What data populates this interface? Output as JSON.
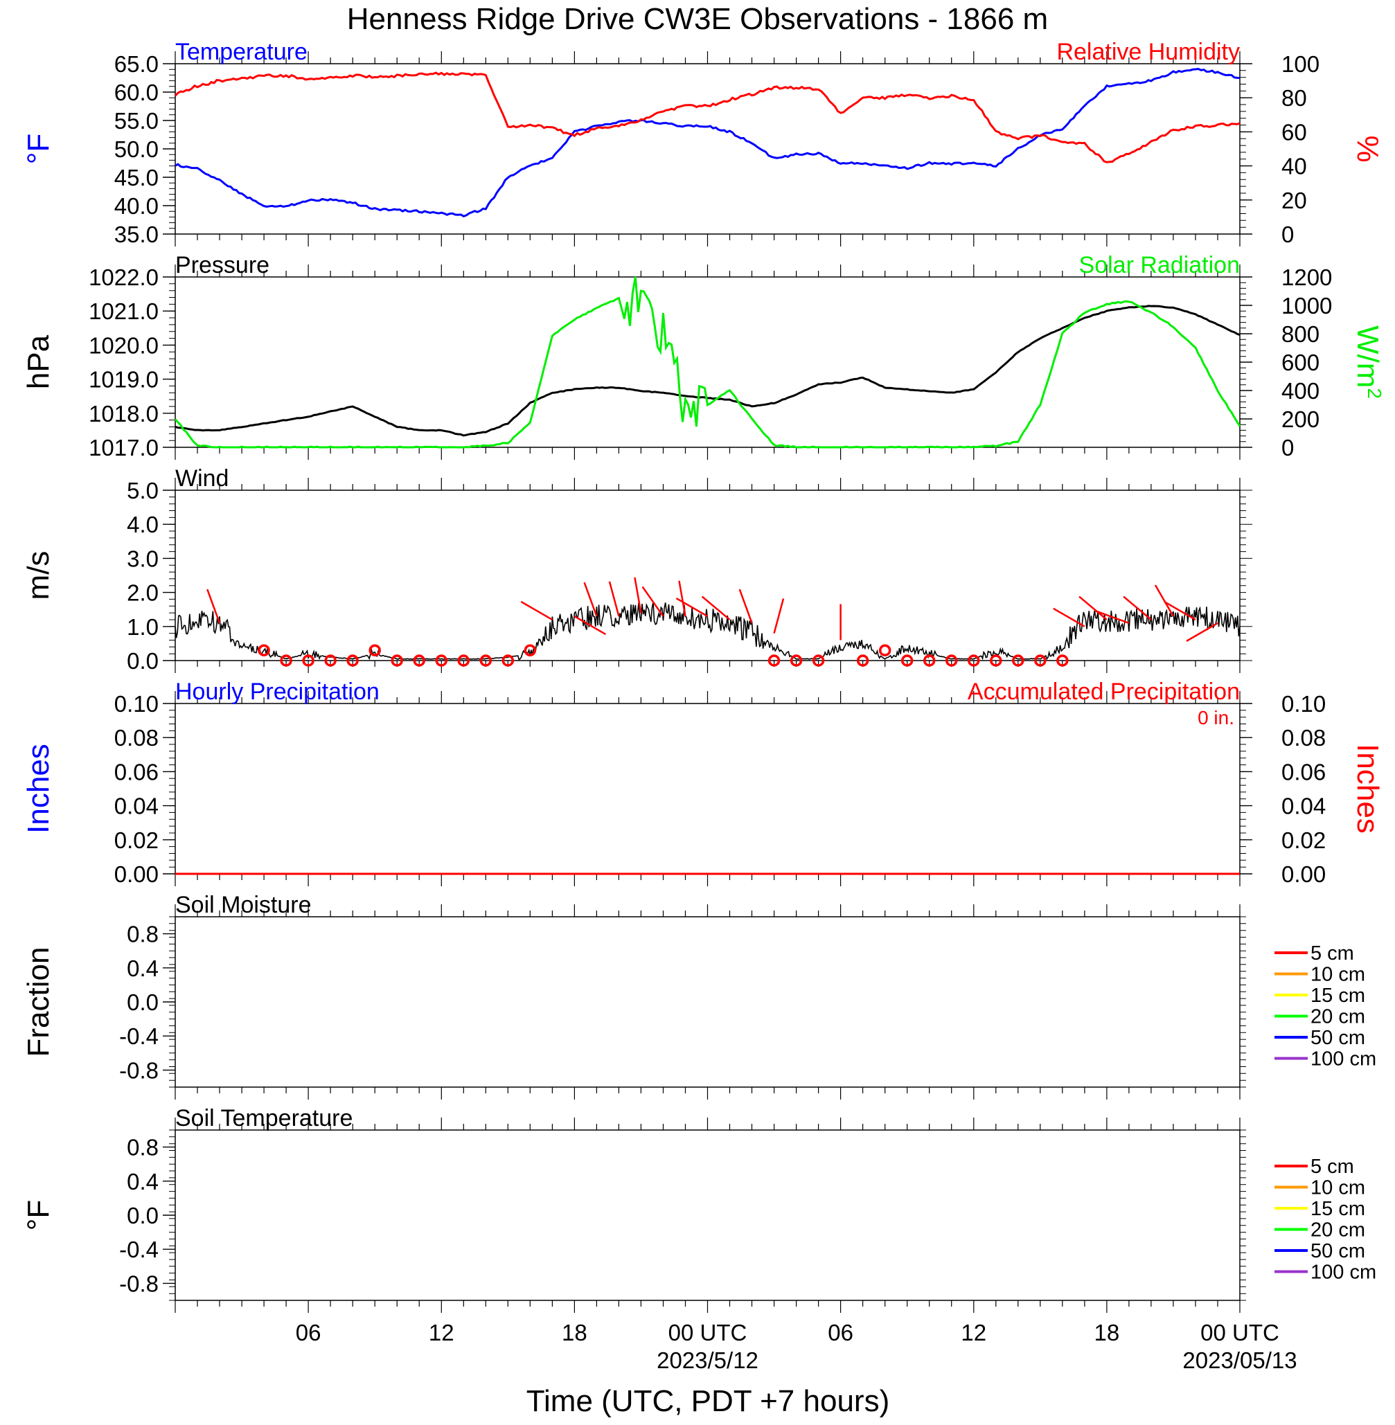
{
  "title": "Henness Ridge Drive CW3E Observations - 1866 m",
  "x_axis": {
    "title": "Time (UTC, PDT +7 hours)",
    "tick_labels": [
      "06",
      "12",
      "18",
      "00 UTC",
      "06",
      "12",
      "18",
      "00 UTC"
    ],
    "date_labels": [
      "2023/5/12",
      "2023/05/13"
    ]
  },
  "colors": {
    "temperature": "#0000ff",
    "humidity": "#ff0000",
    "pressure": "#000000",
    "solar": "#00ee00",
    "wind": "#000000",
    "wind_barb": "#ff0000",
    "soil_5": "#ff0000",
    "soil_10": "#ff9900",
    "soil_15": "#ffff00",
    "soil_20": "#00ff00",
    "soil_50": "#0000ff",
    "soil_100": "#9933cc"
  },
  "chart_data": [
    {
      "type": "line",
      "panel": "temperature-humidity",
      "left_title": "Temperature",
      "right_title": "Relative Humidity",
      "ylabel_left": "°F",
      "ylabel_right": "%",
      "ylim_left": [
        35,
        65
      ],
      "ylim_right": [
        0,
        100
      ],
      "yticks_left": [
        "65.0",
        "60.0",
        "55.0",
        "50.0",
        "45.0",
        "40.0",
        "35.0"
      ],
      "yticks_right": [
        "100",
        "80",
        "60",
        "40",
        "20",
        "0"
      ],
      "x_hours": [
        0,
        1,
        2,
        3,
        4,
        5,
        6,
        7,
        8,
        9,
        10,
        11,
        12,
        13,
        14,
        15,
        16,
        17,
        18,
        19,
        20,
        21,
        22,
        23,
        24,
        25,
        26,
        27,
        28,
        29,
        30,
        31,
        32,
        33,
        34,
        35,
        36,
        37,
        38,
        39,
        40,
        41,
        42,
        43,
        44,
        45,
        46,
        47,
        48
      ],
      "series": [
        {
          "name": "Temperature",
          "axis": "left",
          "values": [
            47.2,
            46.5,
            44.5,
            42.0,
            40.0,
            39.8,
            41.0,
            41.0,
            40.5,
            39.4,
            39.2,
            39.0,
            38.6,
            38.3,
            39.5,
            45.0,
            47.0,
            48.5,
            53.0,
            54.0,
            54.8,
            55.0,
            54.5,
            54.0,
            54.0,
            53.0,
            51.0,
            48.3,
            49.0,
            49.2,
            47.5,
            47.5,
            47.0,
            46.6,
            47.5,
            47.4,
            47.5,
            47.0,
            50.0,
            52.5,
            53.5,
            57.5,
            61.0,
            61.5,
            62.0,
            63.5,
            64.0,
            63.5,
            62.5
          ]
        },
        {
          "name": "Relative Humidity",
          "axis": "right",
          "values": [
            82,
            87,
            90,
            91,
            93,
            93,
            91,
            92,
            93,
            92,
            93,
            94,
            94,
            94,
            93,
            63,
            64,
            62,
            58,
            62,
            64,
            67,
            72,
            75,
            75,
            79,
            82,
            86,
            86,
            85,
            71,
            80,
            80,
            82,
            80,
            81,
            79,
            60,
            56,
            58,
            54,
            53,
            42,
            47,
            54,
            61,
            63,
            64,
            65
          ]
        }
      ]
    },
    {
      "type": "line",
      "panel": "pressure-solar",
      "left_title": "Pressure",
      "right_title": "Solar Radiation",
      "ylabel_left": "hPa",
      "ylabel_right": "W/m",
      "ylabel_right_sup": "2",
      "ylim_left": [
        1017,
        1022
      ],
      "ylim_right": [
        0,
        1200
      ],
      "yticks_left": [
        "1022.0",
        "1021.0",
        "1020.0",
        "1019.0",
        "1018.0",
        "1017.0"
      ],
      "yticks_right": [
        "1200",
        "1000",
        "800",
        "600",
        "400",
        "200",
        "0"
      ],
      "x_hours": [
        0,
        1,
        2,
        3,
        4,
        5,
        6,
        7,
        8,
        9,
        10,
        11,
        12,
        13,
        14,
        15,
        16,
        17,
        18,
        19,
        20,
        21,
        22,
        23,
        24,
        25,
        26,
        27,
        28,
        29,
        30,
        31,
        32,
        33,
        34,
        35,
        36,
        37,
        38,
        39,
        40,
        41,
        42,
        43,
        44,
        45,
        46,
        47,
        48
      ],
      "series": [
        {
          "name": "Pressure",
          "axis": "left",
          "values": [
            1017.6,
            1017.5,
            1017.5,
            1017.6,
            1017.7,
            1017.8,
            1017.9,
            1018.05,
            1018.2,
            1017.9,
            1017.6,
            1017.5,
            1017.5,
            1017.35,
            1017.45,
            1017.7,
            1018.3,
            1018.6,
            1018.7,
            1018.75,
            1018.75,
            1018.65,
            1018.6,
            1018.5,
            1018.45,
            1018.4,
            1018.2,
            1018.3,
            1018.55,
            1018.85,
            1018.9,
            1019.05,
            1018.75,
            1018.7,
            1018.65,
            1018.6,
            1018.7,
            1019.2,
            1019.8,
            1020.2,
            1020.5,
            1020.8,
            1021.0,
            1021.1,
            1021.15,
            1021.1,
            1020.9,
            1020.6,
            1020.3
          ]
        },
        {
          "name": "Solar Radiation",
          "axis": "right",
          "values": [
            200,
            10,
            0,
            0,
            0,
            0,
            0,
            0,
            0,
            0,
            0,
            0,
            0,
            0,
            10,
            30,
            170,
            790,
            900,
            980,
            1050,
            1030,
            800,
            300,
            300,
            400,
            200,
            15,
            0,
            0,
            0,
            0,
            0,
            0,
            0,
            0,
            0,
            10,
            40,
            300,
            800,
            950,
            1010,
            1030,
            950,
            850,
            700,
            400,
            150
          ]
        }
      ]
    },
    {
      "type": "line",
      "panel": "wind",
      "left_title": "Wind",
      "ylabel_left": "m/s",
      "ylim_left": [
        0,
        5
      ],
      "yticks_left": [
        "5.0",
        "4.0",
        "3.0",
        "2.0",
        "1.0",
        "0.0"
      ],
      "x_hours": [
        0,
        1,
        2,
        3,
        4,
        5,
        6,
        7,
        8,
        9,
        10,
        11,
        12,
        13,
        14,
        15,
        16,
        17,
        18,
        19,
        20,
        21,
        22,
        23,
        24,
        25,
        26,
        27,
        28,
        29,
        30,
        31,
        32,
        33,
        34,
        35,
        36,
        37,
        38,
        39,
        40,
        41,
        42,
        43,
        44,
        45,
        46,
        47,
        48
      ],
      "series": [
        {
          "name": "Wind speed",
          "axis": "left",
          "values": [
            1.0,
            1.2,
            1.1,
            0.4,
            0.3,
            0.05,
            0.2,
            0.1,
            0.05,
            0.2,
            0.05,
            0.05,
            0.05,
            0.05,
            0.05,
            0.1,
            0.2,
            1.0,
            1.2,
            1.3,
            1.3,
            1.4,
            1.4,
            1.3,
            1.2,
            1.1,
            0.8,
            0.4,
            0.05,
            0.05,
            0.4,
            0.5,
            0.05,
            0.4,
            0.2,
            0.05,
            0.05,
            0.3,
            0.05,
            0.05,
            0.4,
            1.2,
            1.1,
            1.2,
            1.2,
            1.3,
            1.3,
            1.2,
            1.0
          ]
        }
      ],
      "calm_hours": [
        4,
        5,
        6,
        7,
        8,
        9,
        10,
        11,
        12,
        13,
        14,
        15,
        16,
        27,
        28,
        29,
        31,
        32,
        33,
        34,
        35,
        36,
        37,
        38,
        39,
        40
      ],
      "barbs": [
        {
          "h": 2,
          "v": 1.1,
          "dir": 340
        },
        {
          "h": 17,
          "v": 1.2,
          "dir": 300
        },
        {
          "h": 18,
          "v": 1.3,
          "dir": 120
        },
        {
          "h": 19,
          "v": 1.3,
          "dir": 340
        },
        {
          "h": 20,
          "v": 1.3,
          "dir": 345
        },
        {
          "h": 21,
          "v": 1.4,
          "dir": 350
        },
        {
          "h": 22,
          "v": 1.3,
          "dir": 325
        },
        {
          "h": 23,
          "v": 1.3,
          "dir": 350
        },
        {
          "h": 24,
          "v": 1.3,
          "dir": 300
        },
        {
          "h": 25,
          "v": 1.2,
          "dir": 310
        },
        {
          "h": 26,
          "v": 1.1,
          "dir": 340
        },
        {
          "h": 27,
          "v": 0.8,
          "dir": 15
        },
        {
          "h": 30,
          "v": 0.6,
          "dir": 0
        },
        {
          "h": 41,
          "v": 1.0,
          "dir": 300
        },
        {
          "h": 42,
          "v": 1.2,
          "dir": 310
        },
        {
          "h": 43,
          "v": 1.1,
          "dir": 290
        },
        {
          "h": 44,
          "v": 1.2,
          "dir": 310
        },
        {
          "h": 45,
          "v": 1.3,
          "dir": 330
        },
        {
          "h": 46,
          "v": 1.2,
          "dir": 300
        },
        {
          "h": 47,
          "v": 1.1,
          "dir": 240
        }
      ]
    },
    {
      "type": "line",
      "panel": "precipitation",
      "left_title": "Hourly Precipitation",
      "right_title": "Accumulated Precipitation",
      "annotation": "0 in.",
      "ylabel_left": "Inches",
      "ylabel_right": "Inches",
      "ylim_left": [
        0,
        0.1
      ],
      "ylim_right": [
        0,
        0.1
      ],
      "yticks_left": [
        "0.10",
        "0.08",
        "0.06",
        "0.04",
        "0.02",
        "0.00"
      ],
      "yticks_right": [
        "0.10",
        "0.08",
        "0.06",
        "0.04",
        "0.02",
        "0.00"
      ],
      "x_hours": [
        0,
        48
      ],
      "series": [
        {
          "name": "Accumulated Precipitation",
          "axis": "right",
          "values": [
            0,
            0
          ]
        }
      ]
    },
    {
      "type": "line",
      "panel": "soil-moisture",
      "left_title": "Soil Moisture",
      "ylabel_left": "Fraction",
      "ylim_left": [
        -1,
        1
      ],
      "yticks_left": [
        "0.8",
        "0.4",
        "0.0",
        "-0.4",
        "-0.8"
      ],
      "legend": [
        "5 cm",
        "10 cm",
        "15 cm",
        "20 cm",
        "50 cm",
        "100 cm"
      ],
      "series": []
    },
    {
      "type": "line",
      "panel": "soil-temperature",
      "left_title": "Soil Temperature",
      "ylabel_left": "°F",
      "ylim_left": [
        -1,
        1
      ],
      "yticks_left": [
        "0.8",
        "0.4",
        "0.0",
        "-0.4",
        "-0.8"
      ],
      "legend": [
        "5 cm",
        "10 cm",
        "15 cm",
        "20 cm",
        "50 cm",
        "100 cm"
      ],
      "series": []
    }
  ]
}
